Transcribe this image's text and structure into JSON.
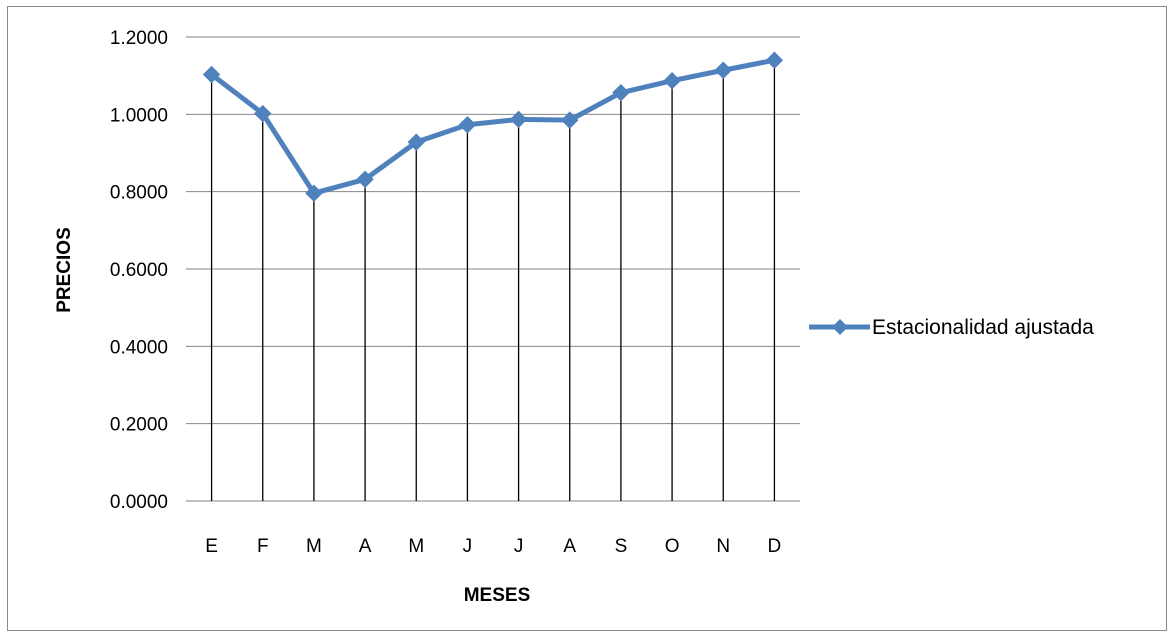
{
  "chart_data": {
    "type": "line",
    "categories": [
      "E",
      "F",
      "M",
      "A",
      "M",
      "J",
      "J",
      "A",
      "S",
      "O",
      "N",
      "D"
    ],
    "series": [
      {
        "name": "Estacionalidad ajustada",
        "values": [
          1.103,
          1.002,
          0.796,
          0.832,
          0.928,
          0.973,
          0.987,
          0.985,
          1.056,
          1.087,
          1.114,
          1.14
        ]
      }
    ],
    "xlabel": "MESES",
    "ylabel": "PRECIOS",
    "ylim": [
      0,
      1.2
    ],
    "yticks": [
      "0.0000",
      "0.2000",
      "0.4000",
      "0.6000",
      "0.8000",
      "1.0000",
      "1.2000"
    ],
    "grid": "horizontal",
    "drop_lines": true,
    "legend_position": "right",
    "colors": {
      "series": "#4F81BD",
      "grid": "#868686",
      "drop_line": "#000000"
    }
  }
}
